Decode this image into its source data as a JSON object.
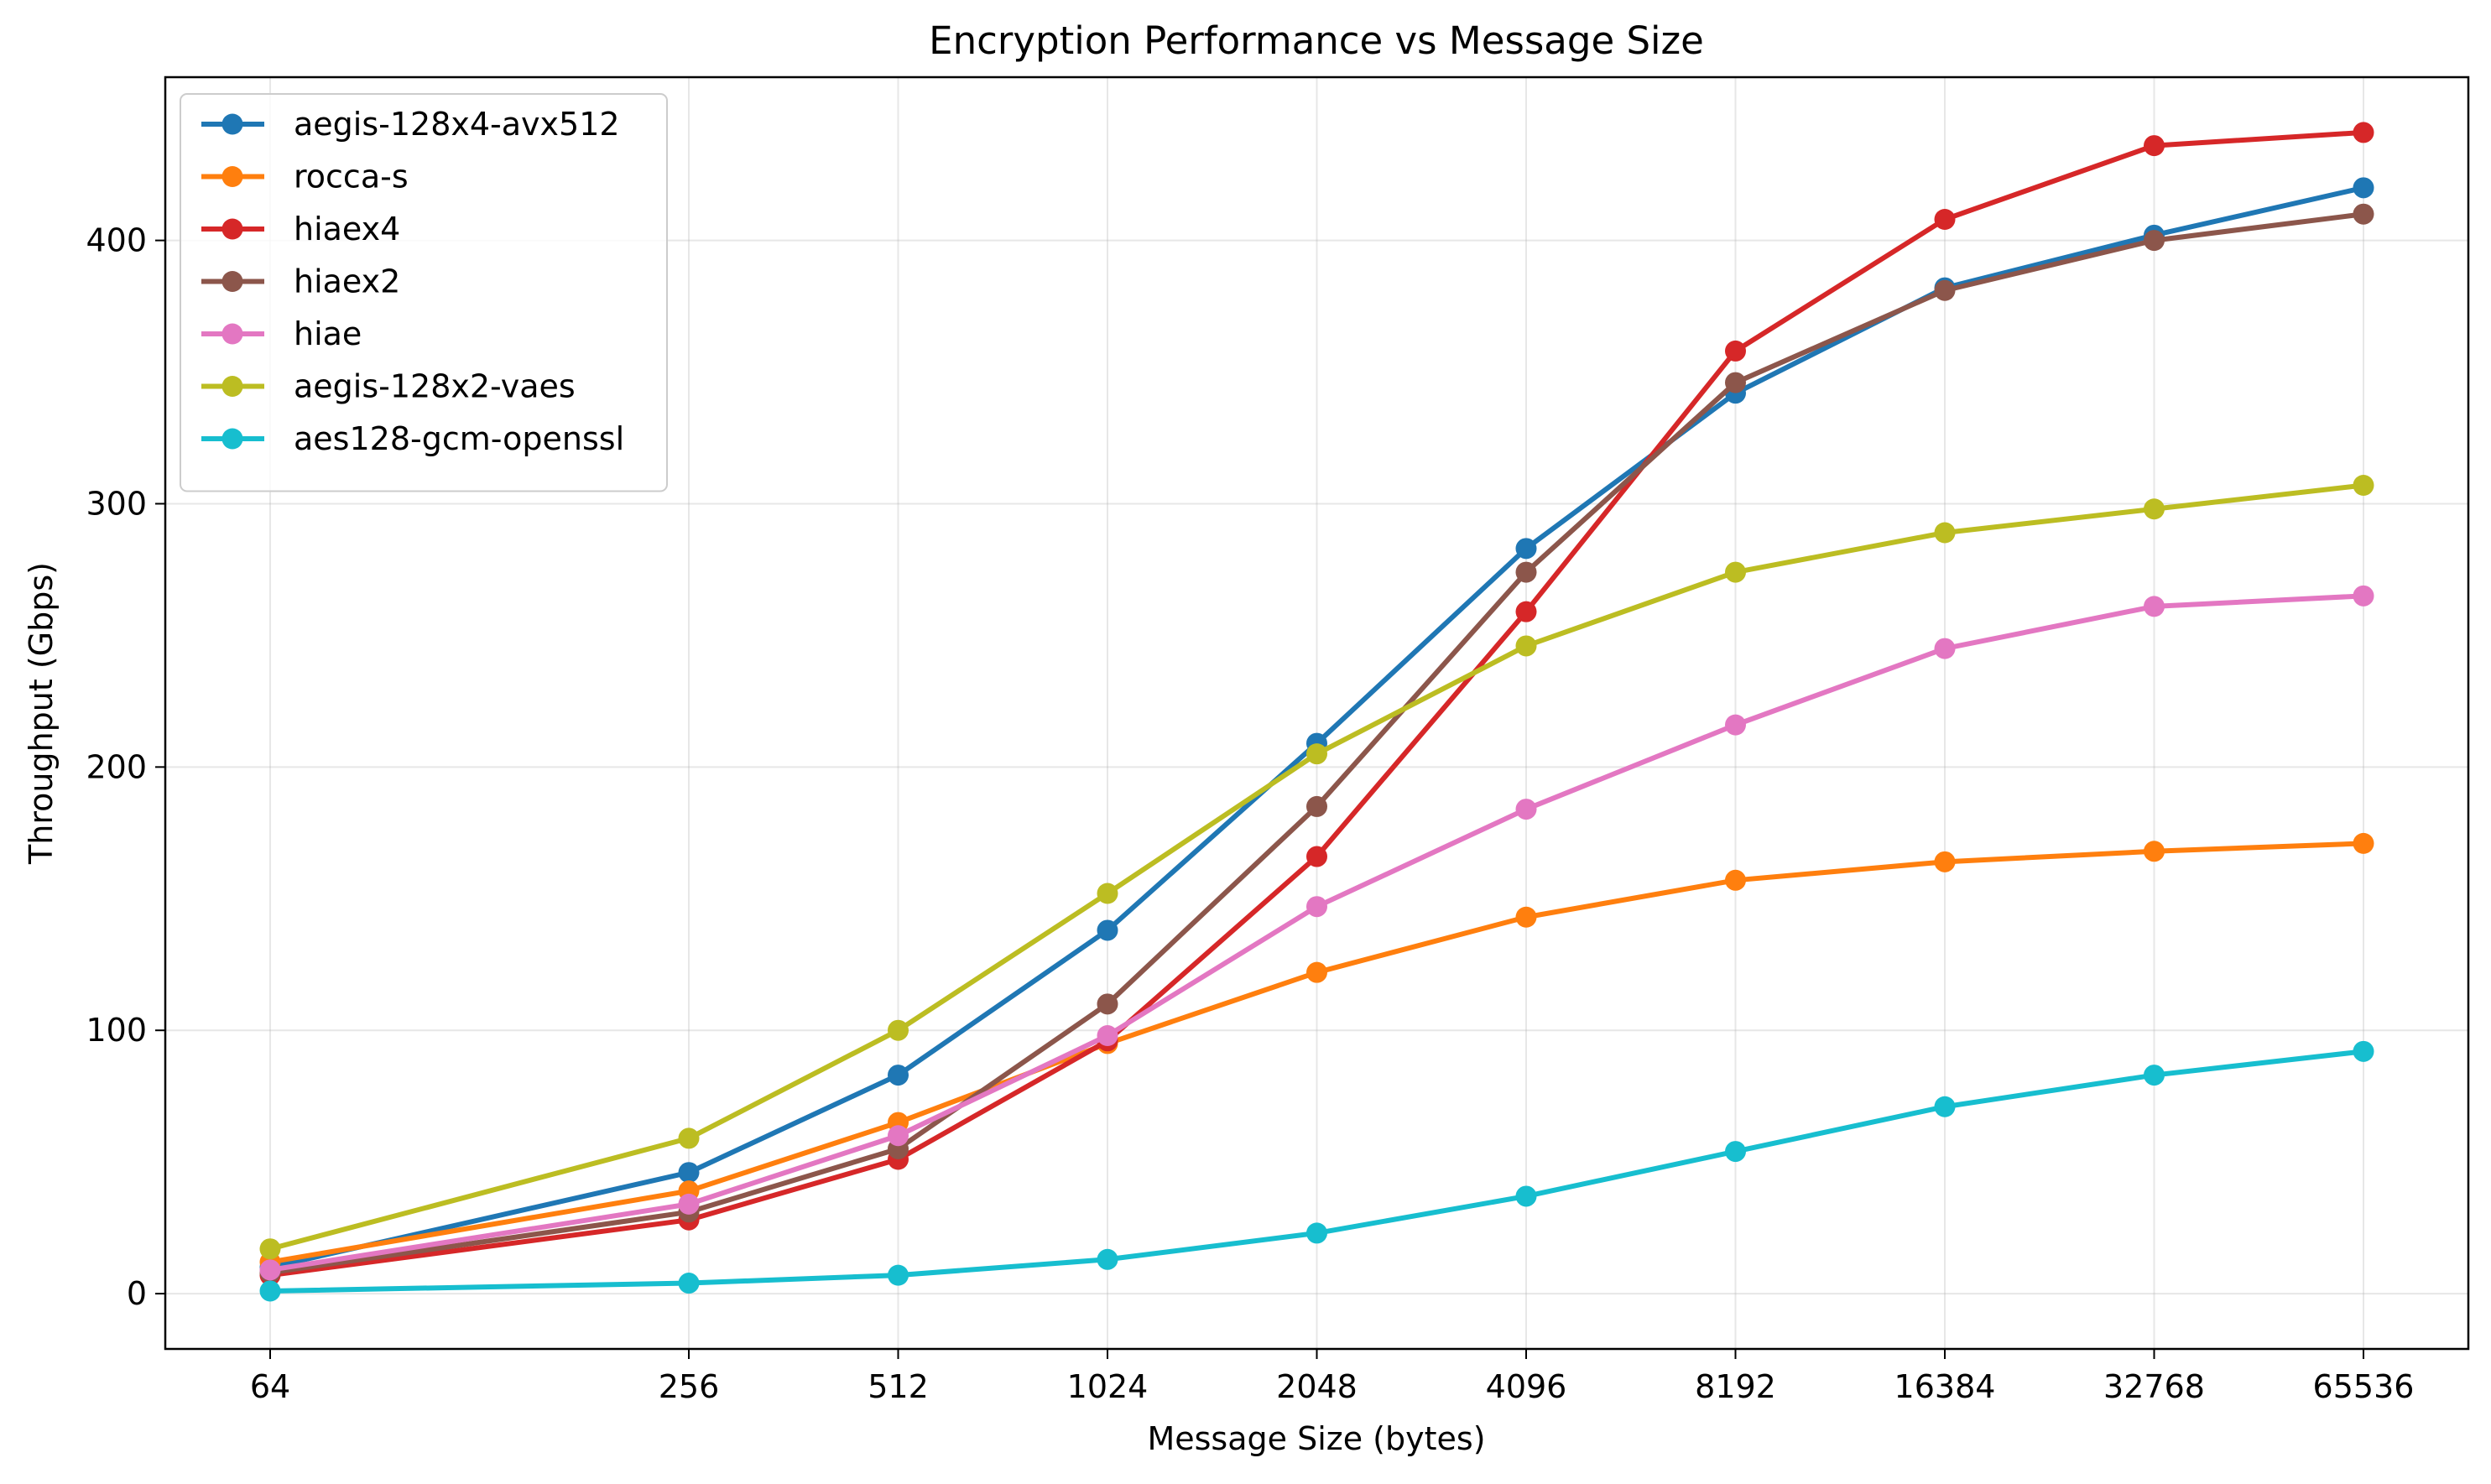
{
  "chart_data": {
    "type": "line",
    "title": "Encryption Performance vs Message Size",
    "xlabel": "Message Size (bytes)",
    "ylabel": "Throughput (Gbps)",
    "x_scale": "log2",
    "categories": [
      "64",
      "256",
      "512",
      "1024",
      "2048",
      "4096",
      "8192",
      "16384",
      "32768",
      "65536"
    ],
    "x": [
      64,
      256,
      512,
      1024,
      2048,
      4096,
      8192,
      16384,
      32768,
      65536
    ],
    "ylim": [
      -21,
      462
    ],
    "yticks": [
      0,
      100,
      200,
      300,
      400
    ],
    "grid": true,
    "legend_position": "top-left",
    "series": [
      {
        "name": "aegis-128x4-avx512",
        "color": "#1f77b4",
        "values": [
          10,
          46,
          83,
          138,
          209,
          283,
          342,
          382,
          402,
          420
        ]
      },
      {
        "name": "rocca-s",
        "color": "#ff7f0e",
        "values": [
          12,
          39,
          65,
          95,
          122,
          143,
          157,
          164,
          168,
          171
        ]
      },
      {
        "name": "hiaex4",
        "color": "#d62728",
        "values": [
          7,
          28,
          51,
          96,
          166,
          259,
          358,
          408,
          436,
          441
        ]
      },
      {
        "name": "hiaex2",
        "color": "#8c564b",
        "values": [
          8,
          31,
          55,
          110,
          185,
          274,
          346,
          381,
          400,
          410
        ]
      },
      {
        "name": "hiae",
        "color": "#e377c2",
        "values": [
          9,
          34,
          60,
          98,
          147,
          184,
          216,
          245,
          261,
          265
        ]
      },
      {
        "name": "aegis-128x2-vaes",
        "color": "#bcbd22",
        "values": [
          17,
          59,
          100,
          152,
          205,
          246,
          274,
          289,
          298,
          307
        ]
      },
      {
        "name": "aes128-gcm-openssl",
        "color": "#17becf",
        "values": [
          1,
          4,
          7,
          13,
          23,
          37,
          54,
          71,
          83,
          92
        ]
      }
    ]
  }
}
